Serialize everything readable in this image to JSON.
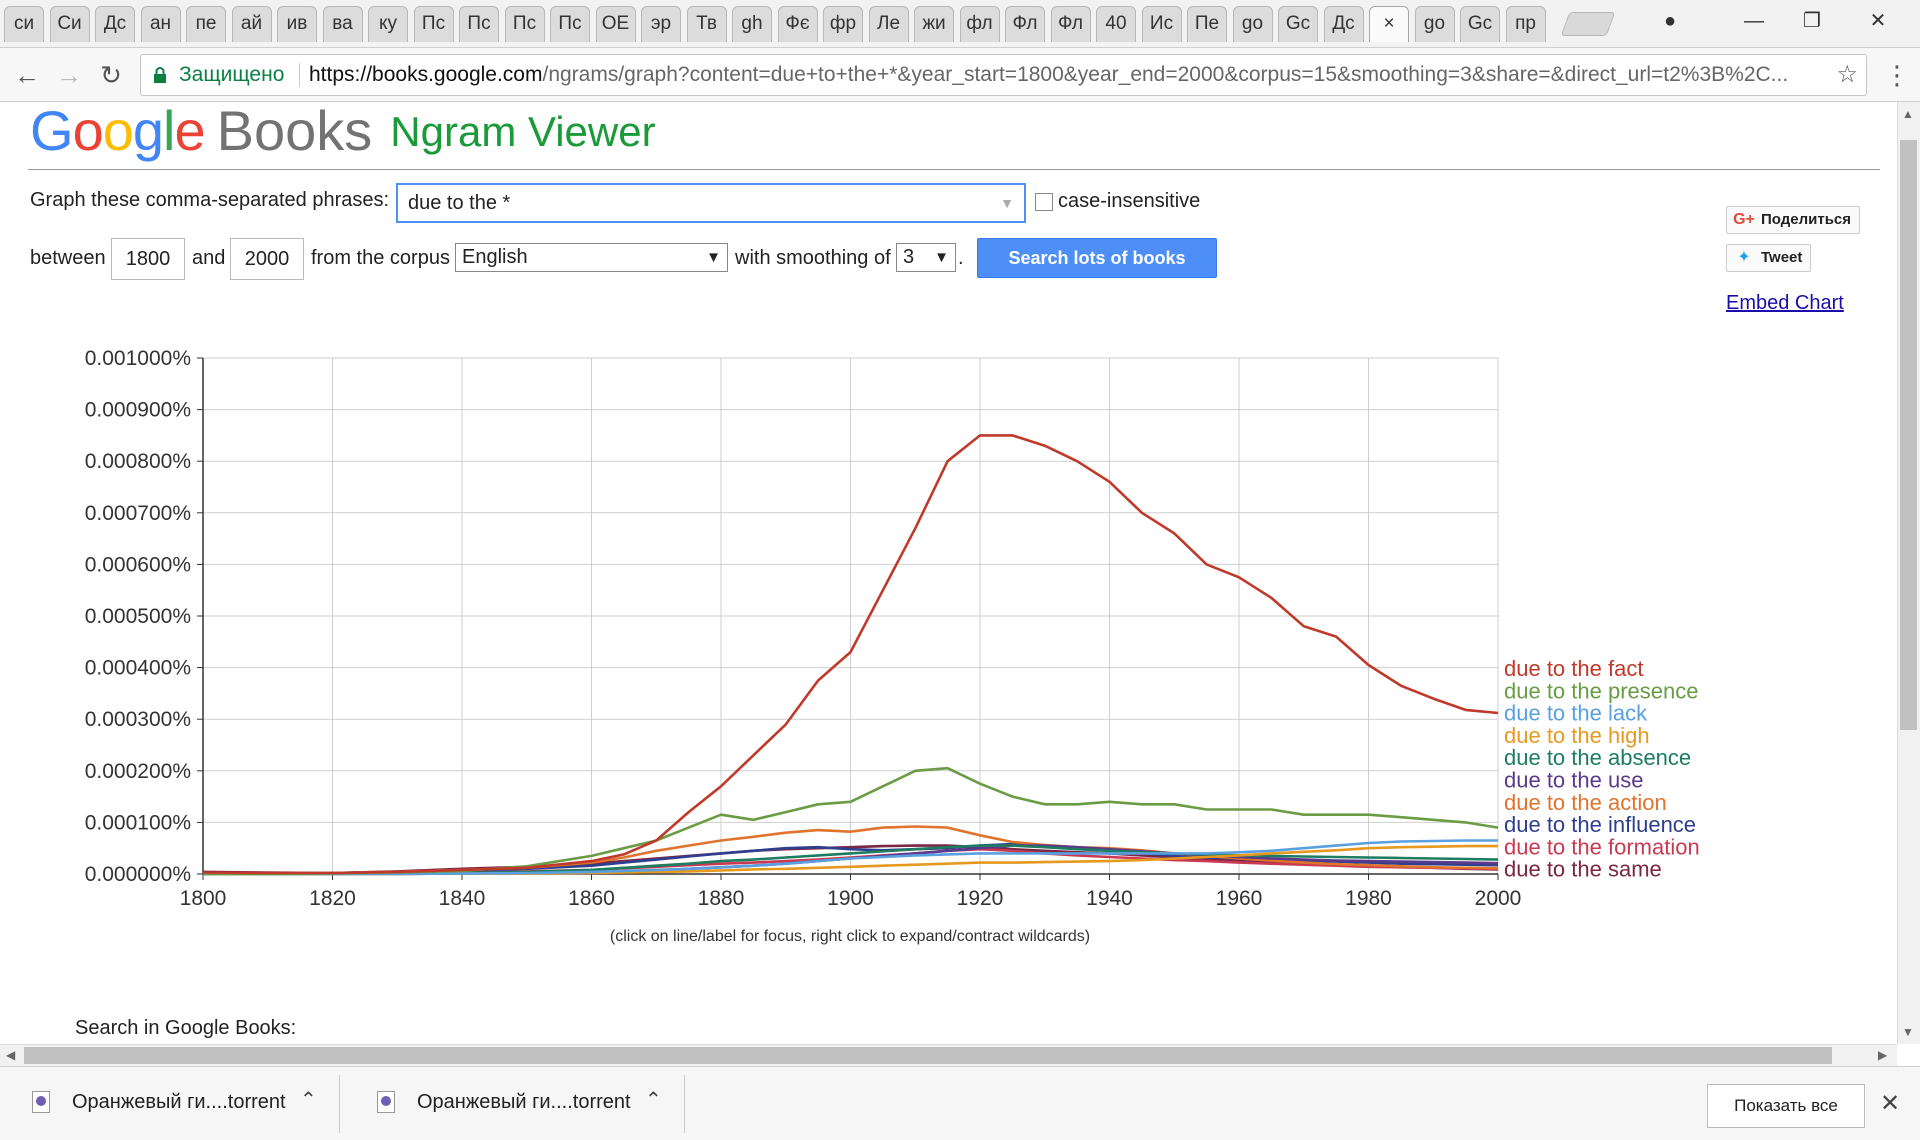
{
  "browser": {
    "tabs": [
      "си",
      "Си",
      "Дс",
      "ан",
      "пе",
      "ай",
      "ив",
      "ва",
      "ку",
      "Пс",
      "Пс",
      "Пс",
      "Пс",
      "ОЕ",
      "эр",
      "Тв",
      "gh",
      "Фє",
      "фр",
      "Ле",
      "жи",
      "фл",
      "Фл",
      "Фл",
      "40",
      "Ис",
      "Пе",
      "go",
      "Gc",
      "Дс",
      "×",
      "go",
      "Gc",
      "пр"
    ],
    "active_tab_index": 30,
    "secure_label": "Защищено",
    "url_host": "https://books.google.com",
    "url_rest": "/ngrams/graph?content=due+to+the+*&year_start=1800&year_end=2000&corpus=15&smoothing=3&share=&direct_url=t2%3B%2C..."
  },
  "header": {
    "logo_google": "Google",
    "logo_books": "Books",
    "logo_ngram": "Ngram Viewer"
  },
  "form": {
    "phrases_label": "Graph these comma-separated phrases:",
    "phrases_value": "due to the *",
    "case_insensitive_label": "case-insensitive",
    "between_label": "between",
    "year_start": "1800",
    "and_label": "and",
    "year_end": "2000",
    "corpus_label": "from the corpus",
    "corpus_value": "English",
    "smoothing_label": "with smoothing of",
    "smoothing_value": "3",
    "period": ".",
    "search_button": "Search lots of books"
  },
  "share": {
    "gplus_label": "Поделиться",
    "tweet_label": "Tweet",
    "embed_label": "Embed Chart"
  },
  "chart_hint": "(click on line/label for focus, right click to expand/contract wildcards)",
  "search_in_books": "Search in Google Books:",
  "downloads": {
    "items": [
      "Оранжевый ги....torrent",
      "Оранжевый ги....torrent"
    ],
    "show_all": "Показать все"
  },
  "chart_data": {
    "type": "line",
    "title": "",
    "xlabel": "",
    "ylabel": "",
    "xlim": [
      1800,
      2000
    ],
    "ylim": [
      0,
      0.001
    ],
    "x_ticks": [
      1800,
      1820,
      1840,
      1860,
      1880,
      1900,
      1920,
      1940,
      1960,
      1980,
      2000
    ],
    "y_ticks": [
      "0.000000%",
      "0.000100%",
      "0.000200%",
      "0.000300%",
      "0.000400%",
      "0.000500%",
      "0.000600%",
      "0.000700%",
      "0.000800%",
      "0.000900%",
      "0.001000%"
    ],
    "y_values_unit": "percent",
    "grid": true,
    "legend_position": "right-end-labels",
    "x": [
      1800,
      1810,
      1820,
      1830,
      1840,
      1850,
      1860,
      1865,
      1870,
      1875,
      1880,
      1885,
      1890,
      1895,
      1900,
      1905,
      1910,
      1915,
      1920,
      1925,
      1930,
      1935,
      1940,
      1945,
      1950,
      1955,
      1960,
      1965,
      1970,
      1975,
      1980,
      1985,
      1990,
      1995,
      2000
    ],
    "series": [
      {
        "name": "due to the fact",
        "color": "#c0392b",
        "values": [
          3e-06,
          2e-06,
          2e-06,
          4e-06,
          8e-06,
          1.2e-05,
          2.5e-05,
          3.8e-05,
          6.5e-05,
          0.00012,
          0.00017,
          0.00023,
          0.00029,
          0.000375,
          0.00043,
          0.00055,
          0.00067,
          0.0008,
          0.00085,
          0.00085,
          0.00083,
          0.0008,
          0.00076,
          0.0007,
          0.00066,
          0.0006,
          0.000575,
          0.000535,
          0.00048,
          0.00046,
          0.000405,
          0.000365,
          0.00034,
          0.000318,
          0.000312
        ]
      },
      {
        "name": "due to the presence",
        "color": "#6a9c45",
        "values": [
          0.0,
          0.0,
          1e-06,
          3e-06,
          6e-06,
          1.5e-05,
          3.5e-05,
          5e-05,
          6.5e-05,
          9e-05,
          0.000115,
          0.000105,
          0.00012,
          0.000135,
          0.00014,
          0.00017,
          0.0002,
          0.000205,
          0.000175,
          0.00015,
          0.000135,
          0.000135,
          0.00014,
          0.000135,
          0.000135,
          0.000125,
          0.000125,
          0.000125,
          0.000115,
          0.000115,
          0.000115,
          0.00011,
          0.000105,
          0.0001,
          9e-05
        ]
      },
      {
        "name": "due to the lack",
        "color": "#5aa0e0",
        "values": [
          0.0,
          0.0,
          0.0,
          0.0,
          1e-06,
          2e-06,
          4e-06,
          6e-06,
          8e-06,
          1e-05,
          1.3e-05,
          1.6e-05,
          2e-05,
          2.5e-05,
          3e-05,
          3.3e-05,
          3.6e-05,
          3.8e-05,
          4e-05,
          4e-05,
          4e-05,
          4e-05,
          4e-05,
          4e-05,
          4e-05,
          4e-05,
          4.2e-05,
          4.5e-05,
          5e-05,
          5.5e-05,
          6e-05,
          6.3e-05,
          6.4e-05,
          6.5e-05,
          6.5e-05
        ]
      },
      {
        "name": "due to the high",
        "color": "#e59a1f",
        "values": [
          0.0,
          0.0,
          0.0,
          0.0,
          1e-06,
          1e-06,
          2e-06,
          3e-06,
          4e-06,
          5e-06,
          7e-06,
          9e-06,
          1e-05,
          1.2e-05,
          1.4e-05,
          1.6e-05,
          1.8e-05,
          2e-05,
          2.2e-05,
          2.2e-05,
          2.3e-05,
          2.4e-05,
          2.5e-05,
          2.7e-05,
          3e-05,
          3.3e-05,
          3.6e-05,
          4e-05,
          4.3e-05,
          4.6e-05,
          5e-05,
          5.2e-05,
          5.3e-05,
          5.4e-05,
          5.4e-05
        ]
      },
      {
        "name": "due to the absence",
        "color": "#1e7c60",
        "values": [
          0.0,
          0.0,
          0.0,
          1e-06,
          2e-06,
          4e-06,
          8e-06,
          1.2e-05,
          1.6e-05,
          2e-05,
          2.5e-05,
          2.8e-05,
          3.2e-05,
          3.6e-05,
          4e-05,
          4.4e-05,
          4.8e-05,
          5.2e-05,
          5.5e-05,
          5.5e-05,
          5.2e-05,
          4.8e-05,
          4.5e-05,
          4.2e-05,
          4e-05,
          3.8e-05,
          3.6e-05,
          3.5e-05,
          3.4e-05,
          3.3e-05,
          3.2e-05,
          3.1e-05,
          3e-05,
          2.9e-05,
          2.8e-05
        ]
      },
      {
        "name": "due to the use",
        "color": "#5b3a8c",
        "values": [
          0.0,
          0.0,
          0.0,
          0.0,
          1e-06,
          2e-06,
          3e-06,
          5e-06,
          7e-06,
          1e-05,
          1.3e-05,
          1.6e-05,
          2e-05,
          2.5e-05,
          3e-05,
          3.5e-05,
          4e-05,
          4.5e-05,
          5e-05,
          5.5e-05,
          5.5e-05,
          5.2e-05,
          4.8e-05,
          4.4e-05,
          4e-05,
          3.6e-05,
          3.3e-05,
          3e-05,
          2.8e-05,
          2.6e-05,
          2.5e-05,
          2.4e-05,
          2.3e-05,
          2.2e-05,
          2.1e-05
        ]
      },
      {
        "name": "due to the action",
        "color": "#e0742d",
        "values": [
          2e-06,
          2e-06,
          2e-06,
          4e-06,
          8e-06,
          1.2e-05,
          2.2e-05,
          3.2e-05,
          4.5e-05,
          5.5e-05,
          6.5e-05,
          7.2e-05,
          8e-05,
          8.5e-05,
          8.2e-05,
          9e-05,
          9.2e-05,
          9e-05,
          7.5e-05,
          6.2e-05,
          5.6e-05,
          5.2e-05,
          5e-05,
          4.6e-05,
          4e-05,
          3.5e-05,
          3e-05,
          2.6e-05,
          2.2e-05,
          1.9e-05,
          1.7e-05,
          1.5e-05,
          1.3e-05,
          1.2e-05,
          1.1e-05
        ]
      },
      {
        "name": "due to the influence",
        "color": "#2f3f8f",
        "values": [
          1e-06,
          1e-06,
          2e-06,
          4e-06,
          7e-06,
          1e-05,
          1.6e-05,
          2.2e-05,
          2.8e-05,
          3.4e-05,
          4e-05,
          4.5e-05,
          5e-05,
          5.2e-05,
          4.8e-05,
          4.6e-05,
          4.8e-05,
          5e-05,
          5.5e-05,
          5.8e-05,
          5.5e-05,
          5e-05,
          4.5e-05,
          4e-05,
          3.5e-05,
          3.2e-05,
          3e-05,
          2.8e-05,
          2.6e-05,
          2.4e-05,
          2.2e-05,
          2e-05,
          1.9e-05,
          1.8e-05,
          1.7e-05
        ]
      },
      {
        "name": "due to the formation",
        "color": "#c93a52",
        "values": [
          0.0,
          0.0,
          1e-06,
          2e-06,
          3e-06,
          5e-06,
          8e-06,
          1.1e-05,
          1.4e-05,
          1.7e-05,
          2e-05,
          2.2e-05,
          2.5e-05,
          2.8e-05,
          3.2e-05,
          3.6e-05,
          4e-05,
          4.5e-05,
          4.8e-05,
          4.5e-05,
          4e-05,
          3.6e-05,
          3.3e-05,
          3e-05,
          2.7e-05,
          2.5e-05,
          2.2e-05,
          2e-05,
          1.8e-05,
          1.6e-05,
          1.4e-05,
          1.3e-05,
          1.2e-05,
          1.1e-05,
          1e-05
        ]
      },
      {
        "name": "due to the same",
        "color": "#7a2645",
        "values": [
          4e-06,
          3e-06,
          2e-06,
          5e-06,
          1e-05,
          1.4e-05,
          2e-05,
          2.5e-05,
          3e-05,
          3.5e-05,
          4e-05,
          4.5e-05,
          4.8e-05,
          5e-05,
          5.2e-05,
          5.4e-05,
          5.5e-05,
          5.5e-05,
          5.2e-05,
          4.8e-05,
          4.5e-05,
          4.2e-05,
          4e-05,
          3.6e-05,
          3.2e-05,
          2.8e-05,
          2.5e-05,
          2.2e-05,
          2e-05,
          1.8e-05,
          1.6e-05,
          1.4e-05,
          1.2e-05,
          1e-05,
          9e-06
        ]
      }
    ]
  }
}
